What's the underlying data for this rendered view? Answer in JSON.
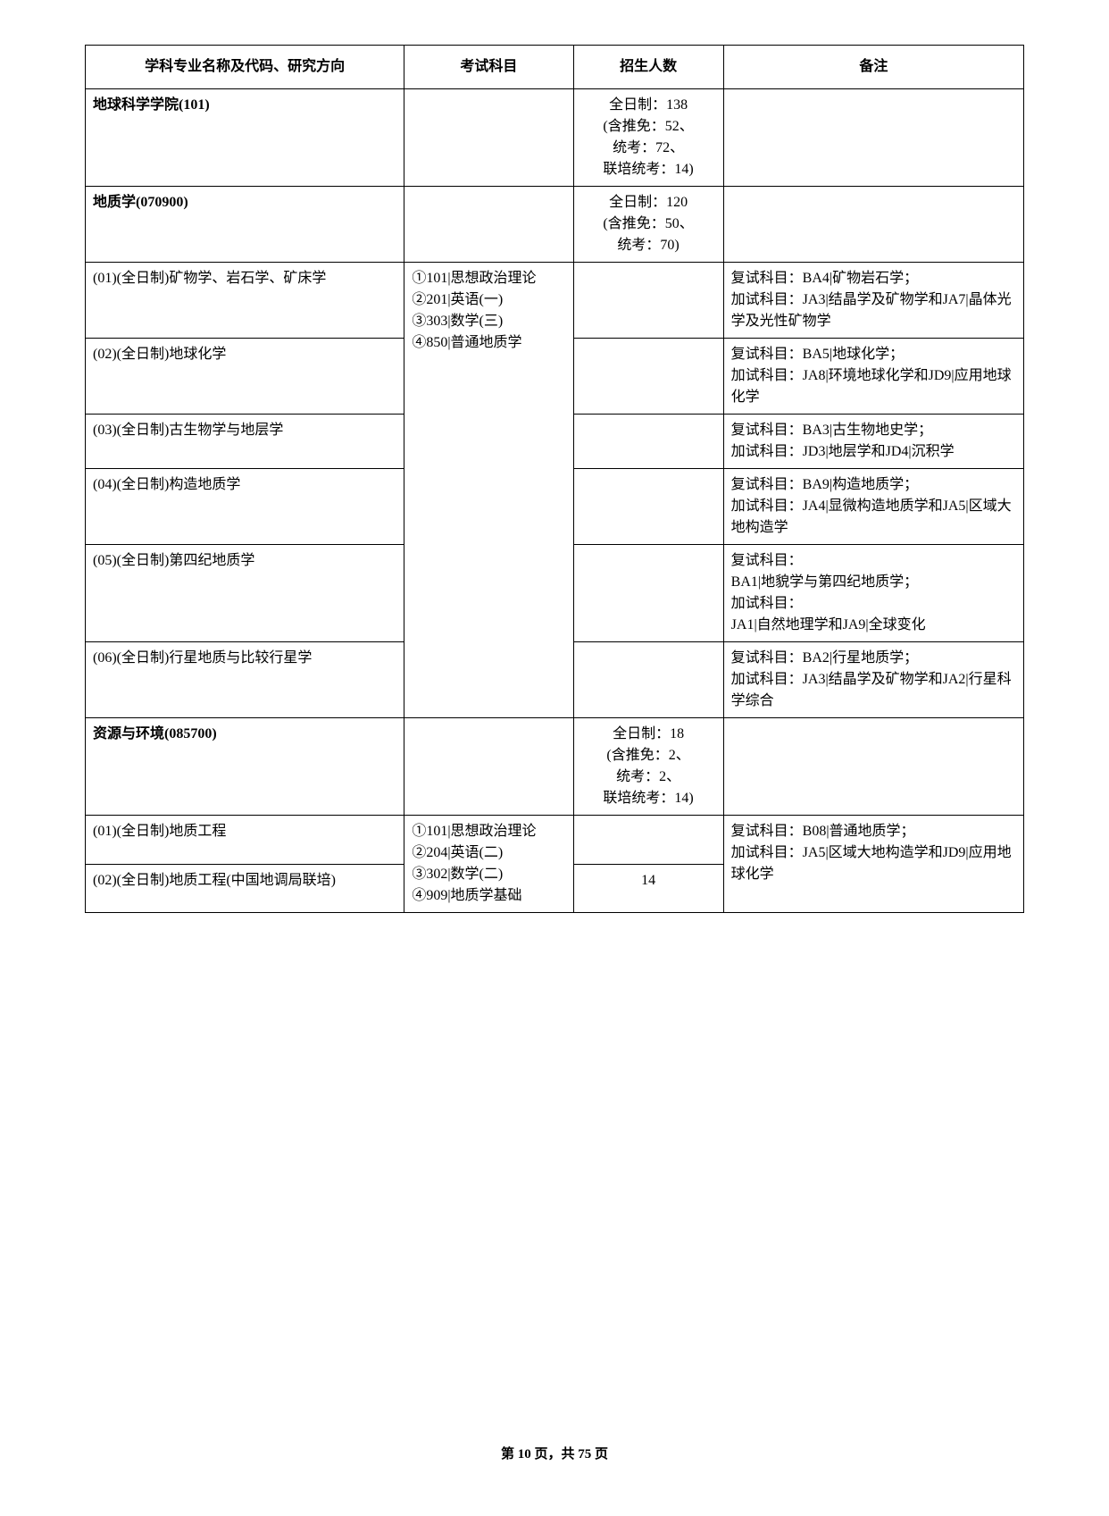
{
  "headers": {
    "col1": "学科专业名称及代码、研究方向",
    "col2": "考试科目",
    "col3": "招生人数",
    "col4": "备注"
  },
  "rows": {
    "r1": {
      "name": "地球科学学院(101)",
      "enrollment": "全日制：138\n(含推免：52、\n统考：72、\n联培统考：14)"
    },
    "r2": {
      "name": "地质学(070900)",
      "enrollment": "全日制：120\n(含推免：50、\n统考：70)"
    },
    "r3": {
      "name": "(01)(全日制)矿物学、岩石学、矿床学",
      "subjects": "①101|思想政治理论\n②201|英语(一)\n③303|数学(三)\n④850|普通地质学",
      "notes": "复试科目：BA4|矿物岩石学；\n加试科目：JA3|结晶学及矿物学和JA7|晶体光学及光性矿物学"
    },
    "r4": {
      "name": "(02)(全日制)地球化学",
      "notes": "复试科目：BA5|地球化学；\n加试科目：JA8|环境地球化学和JD9|应用地球化学"
    },
    "r5": {
      "name": "(03)(全日制)古生物学与地层学",
      "notes": "复试科目：BA3|古生物地史学；\n加试科目：JD3|地层学和JD4|沉积学"
    },
    "r6": {
      "name": "(04)(全日制)构造地质学",
      "notes": "复试科目：BA9|构造地质学；\n加试科目：JA4|显微构造地质学和JA5|区域大地构造学"
    },
    "r7": {
      "name": "(05)(全日制)第四纪地质学",
      "notes": "复试科目：\nBA1|地貌学与第四纪地质学；\n加试科目：\nJA1|自然地理学和JA9|全球变化"
    },
    "r8": {
      "name": "(06)(全日制)行星地质与比较行星学",
      "notes": "复试科目：BA2|行星地质学；\n加试科目：JA3|结晶学及矿物学和JA2|行星科学综合"
    },
    "r9": {
      "name": "资源与环境(085700)",
      "enrollment": "全日制：18\n(含推免：2、\n统考：2、\n联培统考：14)"
    },
    "r10": {
      "name": "(01)(全日制)地质工程",
      "subjects": "①101|思想政治理论\n②204|英语(二)\n③302|数学(二)\n④909|地质学基础",
      "notes": "复试科目：B08|普通地质学；\n加试科目：JA5|区域大地构造学和JD9|应用地球化学"
    },
    "r11": {
      "name": "(02)(全日制)地质工程(中国地调局联培)",
      "enrollment": "14"
    }
  },
  "footer": {
    "text": "第 10 页，共 75 页"
  }
}
